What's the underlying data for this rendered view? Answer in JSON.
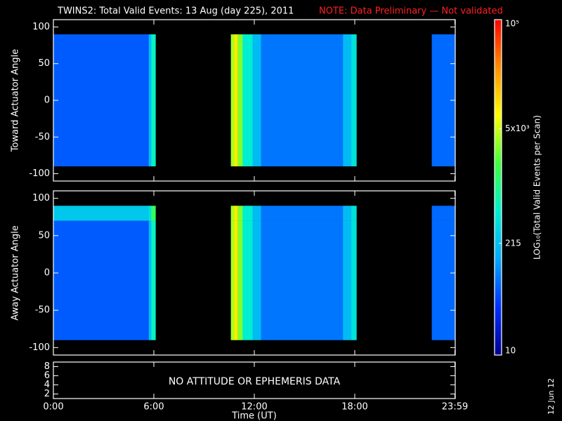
{
  "title": "TWINS2: Total Valid Events: 13 Aug (day 225), 2011",
  "note": "NOTE: Data Preliminary — Not validated",
  "date_stamp": "12 Jun 12",
  "chart_data": [
    {
      "type": "heatmap",
      "ylabel": "Toward Actuator Angle",
      "xlim": [
        0,
        24
      ],
      "ylim": [
        -110,
        110
      ],
      "yticks": [
        100,
        50,
        0,
        -50,
        -100
      ],
      "x": [
        0,
        5.7,
        5.85,
        6.1,
        10.6,
        10.8,
        11.0,
        11.3,
        11.9,
        12.4,
        17.3,
        17.8,
        18.1,
        22.6,
        24
      ],
      "ybins": [
        -90,
        90
      ],
      "values": [
        [
          60
        ],
        [
          200
        ],
        [
          600
        ],
        [
          null
        ],
        [
          4000
        ],
        [
          9000
        ],
        [
          3000
        ],
        [
          500
        ],
        [
          200
        ],
        [
          80
        ],
        [
          200
        ],
        [
          400
        ],
        [
          null
        ],
        [
          70
        ]
      ]
    },
    {
      "type": "heatmap",
      "ylabel": "Away Actuator Angle",
      "xlim": [
        0,
        24
      ],
      "ylim": [
        -110,
        110
      ],
      "yticks": [
        100,
        50,
        0,
        -50,
        -100
      ],
      "x": [
        0,
        5.7,
        5.85,
        6.1,
        10.6,
        10.8,
        11.0,
        11.3,
        11.9,
        12.4,
        17.3,
        17.8,
        18.1,
        22.6,
        24
      ],
      "ybins": [
        -90,
        70,
        90
      ],
      "values": [
        [
          60,
          250
        ],
        [
          200,
          400
        ],
        [
          600,
          1500
        ],
        [
          null,
          null
        ],
        [
          4000,
          4000
        ],
        [
          9000,
          9000
        ],
        [
          3000,
          3000
        ],
        [
          500,
          500
        ],
        [
          200,
          200
        ],
        [
          80,
          80
        ],
        [
          200,
          200
        ],
        [
          400,
          400
        ],
        [
          null,
          null
        ],
        [
          70,
          70
        ]
      ]
    },
    {
      "type": "text-panel",
      "annotation": "NO ATTITUDE OR EPHEMERIS DATA",
      "xlim": [
        0,
        24
      ],
      "ylim": [
        1,
        9
      ],
      "yticks": [
        2,
        4,
        6,
        8
      ],
      "xlabel": "Time (UT)",
      "xticks": [
        {
          "value": 0,
          "label": "0:00"
        },
        {
          "value": 6,
          "label": "6:00"
        },
        {
          "value": 12,
          "label": "12:00"
        },
        {
          "value": 18,
          "label": "18:00"
        },
        {
          "value": 23.98,
          "label": "23:59"
        }
      ]
    },
    {
      "type": "colorbar",
      "label": "LOG₁₀(Total Valid Events per Scan)",
      "log": true,
      "clim": [
        10,
        100000
      ],
      "cticks": [
        10,
        215,
        {
          "value": 5000,
          "label": "5x10³"
        },
        {
          "value": 100000,
          "label": "10⁵"
        }
      ],
      "colors": [
        "#000090",
        "#0030ff",
        "#00a8ff",
        "#00f0d0",
        "#40ff40",
        "#ffff00",
        "#ff9000",
        "#ff0000"
      ]
    }
  ]
}
